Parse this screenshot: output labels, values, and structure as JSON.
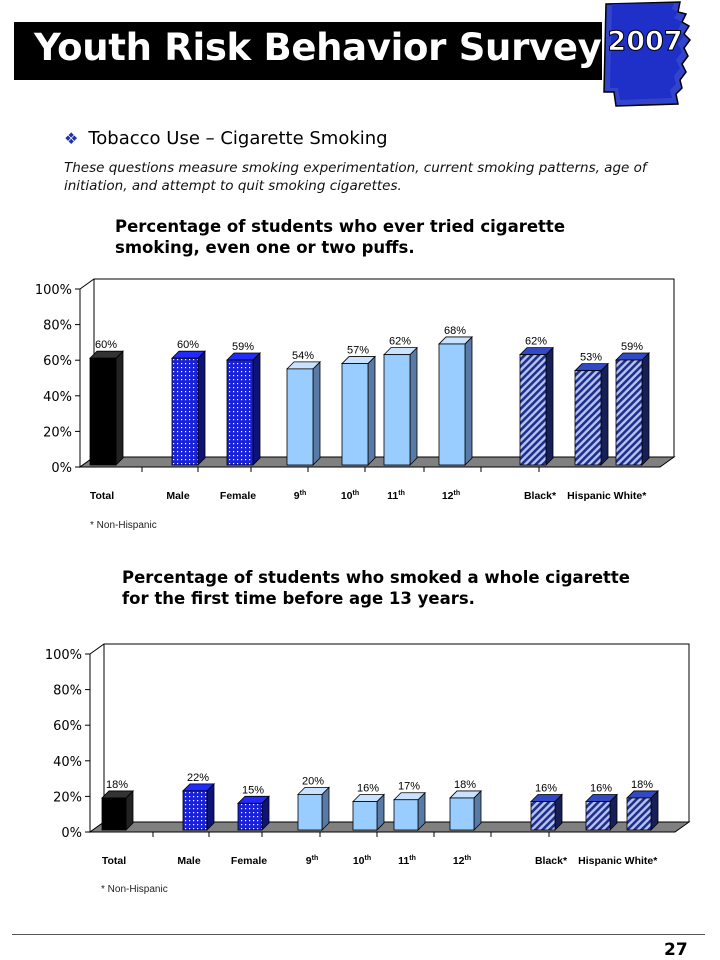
{
  "header": {
    "title": "Youth Risk Behavior Survey",
    "year": "2007"
  },
  "section": {
    "title": "Tobacco Use – Cigarette Smoking",
    "intro": "These questions measure smoking experimentation, current smoking patterns, age of initiation, and attempt to quit smoking cigarettes."
  },
  "colors": {
    "total": "#000000",
    "gender": "#1a22d8",
    "grade": "#99ccff",
    "race": "#283a9e",
    "state_blue": "#1c2fc8",
    "floor": "#808080"
  },
  "chart_data": [
    {
      "type": "bar",
      "title": "Percentage of students who ever tried cigarette smoking, even one or two puffs.",
      "categories": [
        "Total",
        "Male",
        "Female",
        "9th",
        "10th",
        "11th",
        "12th",
        "Black*",
        "Hispanic",
        "White*"
      ],
      "values": [
        60,
        60,
        59,
        54,
        57,
        62,
        68,
        62,
        53,
        59
      ],
      "value_labels": [
        "60%",
        "60%",
        "59%",
        "54%",
        "57%",
        "62%",
        "68%",
        "62%",
        "53%",
        "59%"
      ],
      "yticks": [
        "0%",
        "20%",
        "40%",
        "60%",
        "80%",
        "100%"
      ],
      "ylim": [
        0,
        100
      ],
      "grid": false,
      "legend": "none",
      "footnote": "* Non-Hispanic"
    },
    {
      "type": "bar",
      "title": "Percentage of students who smoked a whole cigarette for the first time before age 13 years.",
      "categories": [
        "Total",
        "Male",
        "Female",
        "9th",
        "10th",
        "11th",
        "12th",
        "Black*",
        "Hispanic",
        "White*"
      ],
      "values": [
        18,
        22,
        15,
        20,
        16,
        17,
        18,
        16,
        16,
        18
      ],
      "value_labels": [
        "18%",
        "22%",
        "15%",
        "20%",
        "16%",
        "17%",
        "18%",
        "16%",
        "16%",
        "18%"
      ],
      "yticks": [
        "0%",
        "20%",
        "40%",
        "60%",
        "80%",
        "100%"
      ],
      "ylim": [
        0,
        100
      ],
      "grid": false,
      "legend": "none",
      "footnote": "* Non-Hispanic"
    }
  ],
  "page": {
    "number": "27"
  }
}
